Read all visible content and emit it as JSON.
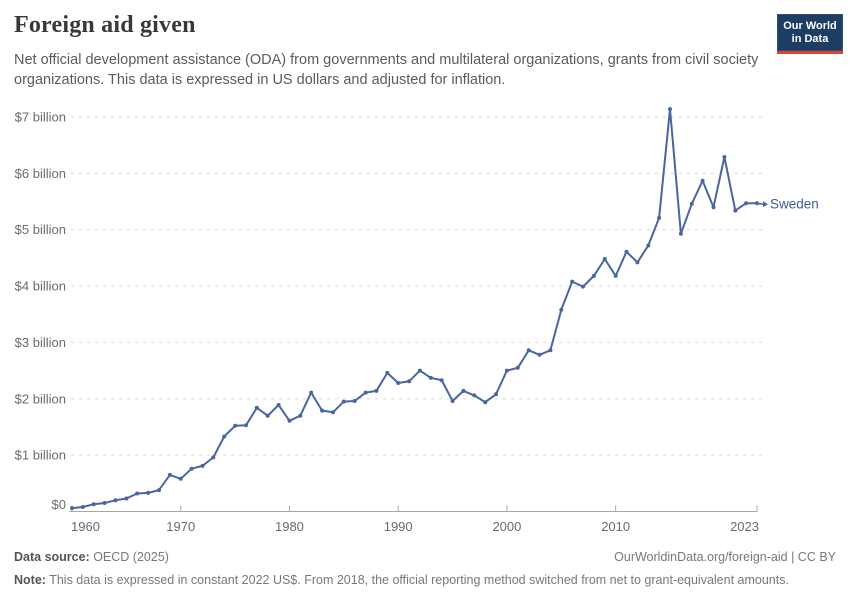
{
  "header": {
    "title": "Foreign aid given",
    "subtitle": "Net official development assistance (ODA) from governments and multilateral organizations, grants from civil society organizations. This data is expressed in US dollars and adjusted for inflation."
  },
  "logo": {
    "line1": "Our World",
    "line2": "in Data"
  },
  "colors": {
    "line": "#4a669f",
    "series_label": "#3d5c94",
    "logo_bg": "#1d3d63",
    "logo_red": "#e0432e",
    "grid": "#d8d8d8",
    "axis": "#a8a8a8",
    "tick_label": "#6b6b6b"
  },
  "chart_data": {
    "type": "line",
    "title": "Foreign aid given",
    "xlabel": "",
    "ylabel": "",
    "x_range": [
      1960,
      2023
    ],
    "ylim": [
      0,
      7.5
    ],
    "grid": "horizontal-dashed",
    "legend_position": "end-of-line",
    "x_ticks": [
      1960,
      1970,
      1980,
      1990,
      2000,
      2010,
      2023
    ],
    "y_ticks": [
      {
        "value": 0,
        "label": "$0"
      },
      {
        "value": 1,
        "label": "$1 billion"
      },
      {
        "value": 2,
        "label": "$2 billion"
      },
      {
        "value": 3,
        "label": "$3 billion"
      },
      {
        "value": 4,
        "label": "$4 billion"
      },
      {
        "value": 5,
        "label": "$5 billion"
      },
      {
        "value": 6,
        "label": "$6 billion"
      },
      {
        "value": 7,
        "label": "$7 billion"
      }
    ],
    "x": [
      1960,
      1961,
      1962,
      1963,
      1964,
      1965,
      1966,
      1967,
      1968,
      1969,
      1970,
      1971,
      1972,
      1973,
      1974,
      1975,
      1976,
      1977,
      1978,
      1979,
      1980,
      1981,
      1982,
      1983,
      1984,
      1985,
      1986,
      1987,
      1988,
      1989,
      1990,
      1991,
      1992,
      1993,
      1994,
      1995,
      1996,
      1997,
      1998,
      1999,
      2000,
      2001,
      2002,
      2003,
      2004,
      2005,
      2006,
      2007,
      2008,
      2009,
      2010,
      2011,
      2012,
      2013,
      2014,
      2015,
      2016,
      2017,
      2018,
      2019,
      2020,
      2021,
      2022,
      2023
    ],
    "series": [
      {
        "name": "Sweden",
        "unit": "billion US$ (constant 2022)",
        "values": [
          0.06,
          0.08,
          0.13,
          0.15,
          0.2,
          0.23,
          0.32,
          0.33,
          0.38,
          0.65,
          0.58,
          0.76,
          0.81,
          0.96,
          1.33,
          1.52,
          1.53,
          1.84,
          1.7,
          1.89,
          1.61,
          1.7,
          2.11,
          1.79,
          1.76,
          1.95,
          1.96,
          2.11,
          2.14,
          2.46,
          2.28,
          2.31,
          2.5,
          2.37,
          2.33,
          1.96,
          2.14,
          2.06,
          1.94,
          2.08,
          2.5,
          2.55,
          2.86,
          2.78,
          2.86,
          3.58,
          4.08,
          3.99,
          4.18,
          4.48,
          4.18,
          4.61,
          4.42,
          4.72,
          5.21,
          7.14,
          4.93,
          5.46,
          5.87,
          5.4,
          6.29,
          5.34,
          5.47,
          5.47
        ]
      }
    ]
  },
  "footer": {
    "data_source_label": "Data source:",
    "data_source_value": " OECD (2025)",
    "rights": "OurWorldinData.org/foreign-aid | CC BY",
    "note_label": "Note:",
    "note_value": " This data is expressed in constant 2022 US$. From 2018, the official reporting method switched from net to grant-equivalent amounts."
  }
}
